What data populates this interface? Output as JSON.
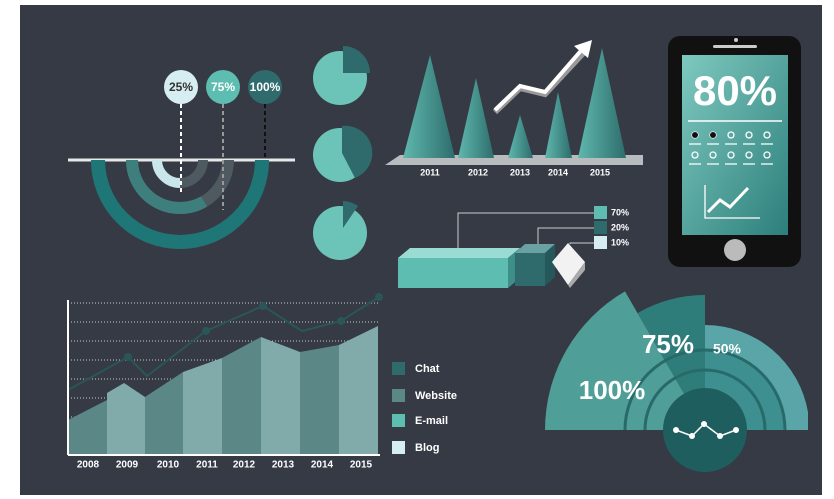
{
  "arcs": {
    "labels": [
      "25%",
      "75%",
      "100%"
    ]
  },
  "peaks": {
    "years": [
      "2011",
      "2012",
      "2013",
      "2014",
      "2015"
    ]
  },
  "bars": {
    "labels": [
      "70%",
      "20%",
      "10%"
    ]
  },
  "phone": {
    "percent": "80%"
  },
  "area": {
    "years": [
      "2008",
      "2009",
      "2010",
      "2011",
      "2012",
      "2013",
      "2014",
      "2015"
    ],
    "legend": [
      "Chat",
      "Website",
      "E-mail",
      "Blog"
    ]
  },
  "fan": {
    "labels": [
      "100%",
      "75%",
      "50%"
    ]
  }
}
